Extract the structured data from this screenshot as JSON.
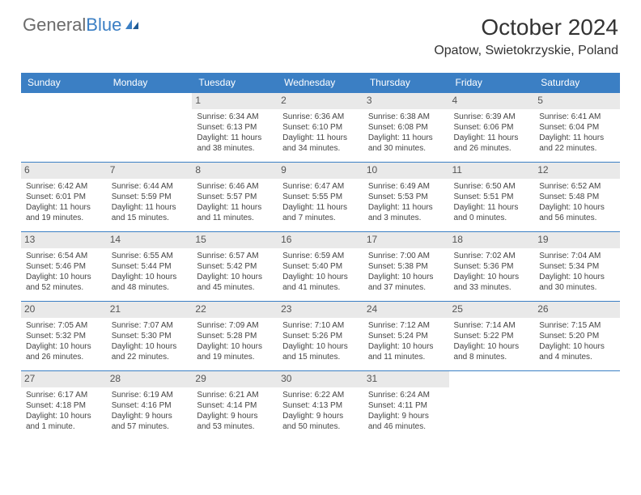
{
  "logo": {
    "part1": "General",
    "part2": "Blue"
  },
  "header": {
    "month_title": "October 2024",
    "location": "Opatow, Swietokrzyskie, Poland"
  },
  "colors": {
    "header_bg": "#3b7fc4",
    "header_text": "#ffffff",
    "daynum_bg": "#e9e9e9",
    "border": "#3b7fc4",
    "logo_gray": "#6b6b6b",
    "logo_blue": "#3b7fc4"
  },
  "day_headers": [
    "Sunday",
    "Monday",
    "Tuesday",
    "Wednesday",
    "Thursday",
    "Friday",
    "Saturday"
  ],
  "weeks": [
    [
      {
        "n": "",
        "sr": "",
        "ss": "",
        "dl": ""
      },
      {
        "n": "",
        "sr": "",
        "ss": "",
        "dl": ""
      },
      {
        "n": "1",
        "sr": "Sunrise: 6:34 AM",
        "ss": "Sunset: 6:13 PM",
        "dl": "Daylight: 11 hours and 38 minutes."
      },
      {
        "n": "2",
        "sr": "Sunrise: 6:36 AM",
        "ss": "Sunset: 6:10 PM",
        "dl": "Daylight: 11 hours and 34 minutes."
      },
      {
        "n": "3",
        "sr": "Sunrise: 6:38 AM",
        "ss": "Sunset: 6:08 PM",
        "dl": "Daylight: 11 hours and 30 minutes."
      },
      {
        "n": "4",
        "sr": "Sunrise: 6:39 AM",
        "ss": "Sunset: 6:06 PM",
        "dl": "Daylight: 11 hours and 26 minutes."
      },
      {
        "n": "5",
        "sr": "Sunrise: 6:41 AM",
        "ss": "Sunset: 6:04 PM",
        "dl": "Daylight: 11 hours and 22 minutes."
      }
    ],
    [
      {
        "n": "6",
        "sr": "Sunrise: 6:42 AM",
        "ss": "Sunset: 6:01 PM",
        "dl": "Daylight: 11 hours and 19 minutes."
      },
      {
        "n": "7",
        "sr": "Sunrise: 6:44 AM",
        "ss": "Sunset: 5:59 PM",
        "dl": "Daylight: 11 hours and 15 minutes."
      },
      {
        "n": "8",
        "sr": "Sunrise: 6:46 AM",
        "ss": "Sunset: 5:57 PM",
        "dl": "Daylight: 11 hours and 11 minutes."
      },
      {
        "n": "9",
        "sr": "Sunrise: 6:47 AM",
        "ss": "Sunset: 5:55 PM",
        "dl": "Daylight: 11 hours and 7 minutes."
      },
      {
        "n": "10",
        "sr": "Sunrise: 6:49 AM",
        "ss": "Sunset: 5:53 PM",
        "dl": "Daylight: 11 hours and 3 minutes."
      },
      {
        "n": "11",
        "sr": "Sunrise: 6:50 AM",
        "ss": "Sunset: 5:51 PM",
        "dl": "Daylight: 11 hours and 0 minutes."
      },
      {
        "n": "12",
        "sr": "Sunrise: 6:52 AM",
        "ss": "Sunset: 5:48 PM",
        "dl": "Daylight: 10 hours and 56 minutes."
      }
    ],
    [
      {
        "n": "13",
        "sr": "Sunrise: 6:54 AM",
        "ss": "Sunset: 5:46 PM",
        "dl": "Daylight: 10 hours and 52 minutes."
      },
      {
        "n": "14",
        "sr": "Sunrise: 6:55 AM",
        "ss": "Sunset: 5:44 PM",
        "dl": "Daylight: 10 hours and 48 minutes."
      },
      {
        "n": "15",
        "sr": "Sunrise: 6:57 AM",
        "ss": "Sunset: 5:42 PM",
        "dl": "Daylight: 10 hours and 45 minutes."
      },
      {
        "n": "16",
        "sr": "Sunrise: 6:59 AM",
        "ss": "Sunset: 5:40 PM",
        "dl": "Daylight: 10 hours and 41 minutes."
      },
      {
        "n": "17",
        "sr": "Sunrise: 7:00 AM",
        "ss": "Sunset: 5:38 PM",
        "dl": "Daylight: 10 hours and 37 minutes."
      },
      {
        "n": "18",
        "sr": "Sunrise: 7:02 AM",
        "ss": "Sunset: 5:36 PM",
        "dl": "Daylight: 10 hours and 33 minutes."
      },
      {
        "n": "19",
        "sr": "Sunrise: 7:04 AM",
        "ss": "Sunset: 5:34 PM",
        "dl": "Daylight: 10 hours and 30 minutes."
      }
    ],
    [
      {
        "n": "20",
        "sr": "Sunrise: 7:05 AM",
        "ss": "Sunset: 5:32 PM",
        "dl": "Daylight: 10 hours and 26 minutes."
      },
      {
        "n": "21",
        "sr": "Sunrise: 7:07 AM",
        "ss": "Sunset: 5:30 PM",
        "dl": "Daylight: 10 hours and 22 minutes."
      },
      {
        "n": "22",
        "sr": "Sunrise: 7:09 AM",
        "ss": "Sunset: 5:28 PM",
        "dl": "Daylight: 10 hours and 19 minutes."
      },
      {
        "n": "23",
        "sr": "Sunrise: 7:10 AM",
        "ss": "Sunset: 5:26 PM",
        "dl": "Daylight: 10 hours and 15 minutes."
      },
      {
        "n": "24",
        "sr": "Sunrise: 7:12 AM",
        "ss": "Sunset: 5:24 PM",
        "dl": "Daylight: 10 hours and 11 minutes."
      },
      {
        "n": "25",
        "sr": "Sunrise: 7:14 AM",
        "ss": "Sunset: 5:22 PM",
        "dl": "Daylight: 10 hours and 8 minutes."
      },
      {
        "n": "26",
        "sr": "Sunrise: 7:15 AM",
        "ss": "Sunset: 5:20 PM",
        "dl": "Daylight: 10 hours and 4 minutes."
      }
    ],
    [
      {
        "n": "27",
        "sr": "Sunrise: 6:17 AM",
        "ss": "Sunset: 4:18 PM",
        "dl": "Daylight: 10 hours and 1 minute."
      },
      {
        "n": "28",
        "sr": "Sunrise: 6:19 AM",
        "ss": "Sunset: 4:16 PM",
        "dl": "Daylight: 9 hours and 57 minutes."
      },
      {
        "n": "29",
        "sr": "Sunrise: 6:21 AM",
        "ss": "Sunset: 4:14 PM",
        "dl": "Daylight: 9 hours and 53 minutes."
      },
      {
        "n": "30",
        "sr": "Sunrise: 6:22 AM",
        "ss": "Sunset: 4:13 PM",
        "dl": "Daylight: 9 hours and 50 minutes."
      },
      {
        "n": "31",
        "sr": "Sunrise: 6:24 AM",
        "ss": "Sunset: 4:11 PM",
        "dl": "Daylight: 9 hours and 46 minutes."
      },
      {
        "n": "",
        "sr": "",
        "ss": "",
        "dl": ""
      },
      {
        "n": "",
        "sr": "",
        "ss": "",
        "dl": ""
      }
    ]
  ]
}
